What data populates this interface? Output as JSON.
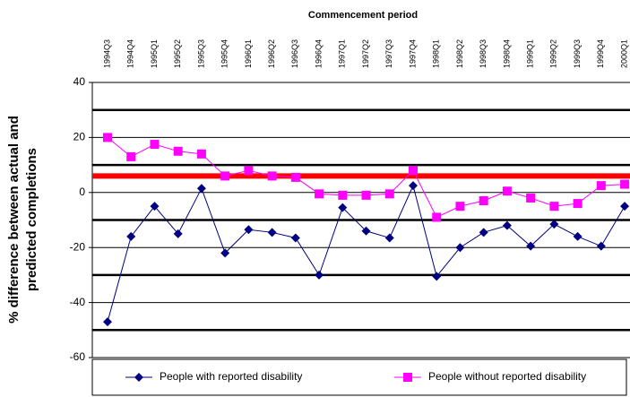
{
  "chart_data": {
    "type": "line",
    "xlabel": "Commencement period",
    "ylabel": [
      "% difference between actual and",
      "predicted completions"
    ],
    "categories": [
      "1994Q3",
      "1994Q4",
      "1995Q1",
      "1995Q2",
      "1995Q3",
      "1995Q4",
      "1996Q1",
      "1996Q2",
      "1996Q3",
      "1996Q4",
      "1997Q1",
      "1997Q2",
      "1997Q3",
      "1997Q4",
      "1998Q1",
      "1998Q2",
      "1998Q3",
      "1998Q4",
      "1999Q1",
      "1999Q2",
      "1999Q3",
      "1999Q4",
      "2000Q1"
    ],
    "series": [
      {
        "name": "People with reported disability",
        "color": "#000080",
        "marker": "diamond",
        "values": [
          -47,
          -16,
          -5,
          -15,
          1.5,
          -22,
          -13.5,
          -14.5,
          -16.5,
          -30,
          -5.5,
          -14,
          -16.5,
          2.5,
          -30.5,
          -20,
          -14.5,
          -12,
          -19.5,
          -11.5,
          -16,
          -19.5,
          -5
        ]
      },
      {
        "name": "People without reported disability",
        "color": "#ff00ff",
        "marker": "square",
        "values": [
          20,
          13,
          17.5,
          15,
          14,
          6,
          8,
          6,
          5.5,
          -0.5,
          -1,
          -1,
          -0.5,
          8,
          -9,
          -5,
          -3,
          0.5,
          -2,
          -5,
          -4,
          2.5,
          3
        ]
      }
    ],
    "reference_line": {
      "value": 6,
      "color": "#ff0000"
    },
    "ylim": [
      -60,
      40
    ],
    "yticks": [
      -60,
      -40,
      -20,
      0,
      20,
      40
    ],
    "grid": true,
    "bold_gridlines": [
      -50,
      -30,
      -10,
      10,
      30
    ],
    "legend": "bottom"
  }
}
